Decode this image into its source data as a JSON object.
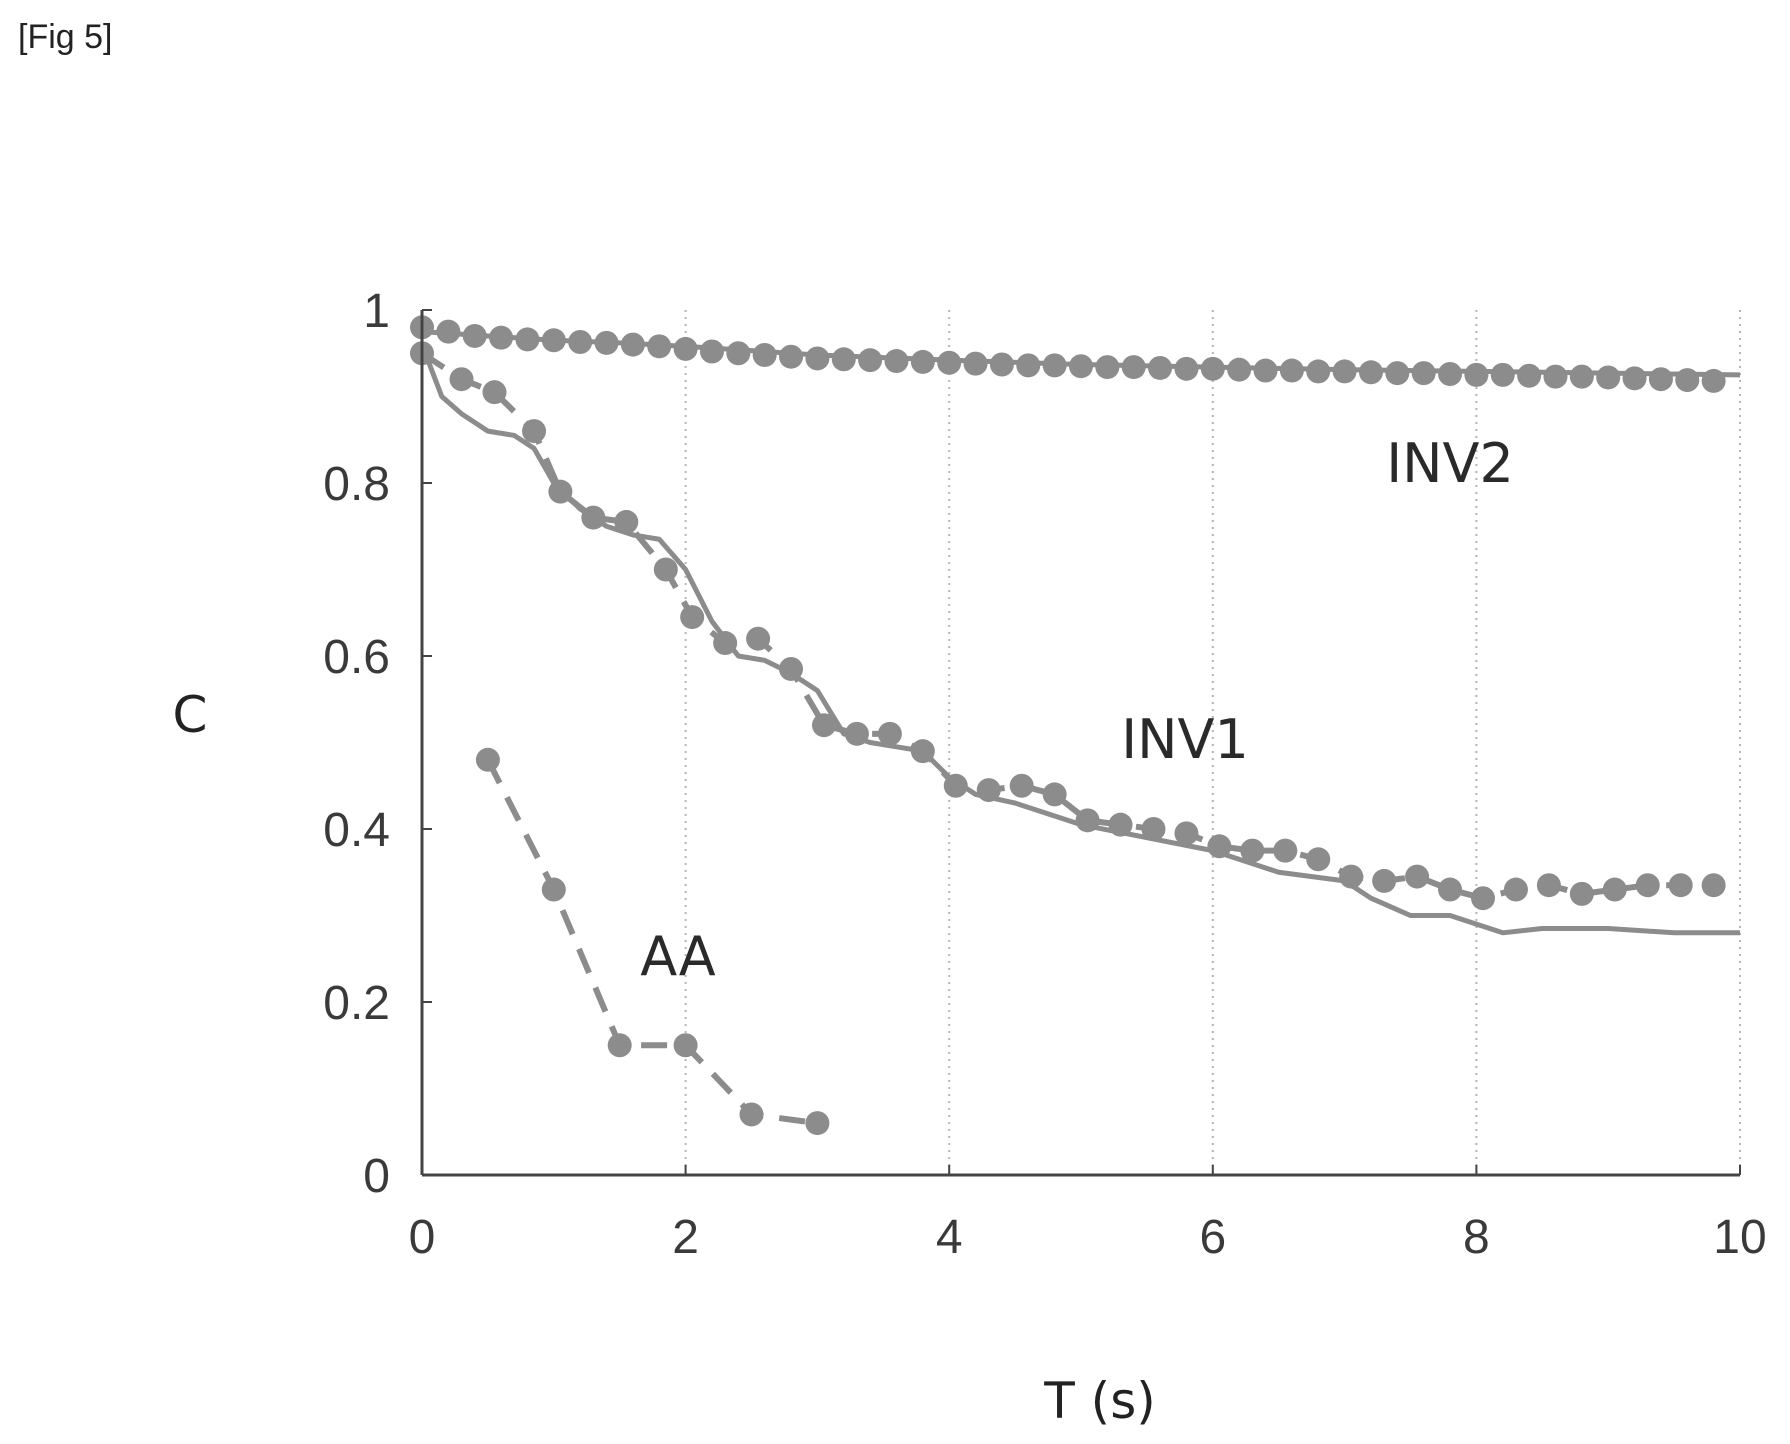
{
  "figure_label": "[Fig 5]",
  "chart_data": {
    "type": "line",
    "xlabel": "T (s)",
    "ylabel": "C",
    "xlim": [
      0,
      10
    ],
    "ylim": [
      0,
      1
    ],
    "x_ticks": [
      "0",
      "2",
      "4",
      "6",
      "8",
      "10"
    ],
    "y_ticks": [
      "0",
      "0.2",
      "0.4",
      "0.6",
      "0.8",
      "1"
    ],
    "grid": "vertical dotted",
    "colors": {
      "series": "#8c8c8c",
      "axis": "#444444",
      "grid": "#b5b5b5"
    },
    "series": [
      {
        "name": "INV2",
        "kind": "solid",
        "x": [
          0,
          0.5,
          1,
          1.5,
          2,
          2.5,
          3,
          4,
          5,
          6,
          7,
          8,
          9,
          10
        ],
        "y": [
          0.975,
          0.97,
          0.965,
          0.962,
          0.958,
          0.953,
          0.948,
          0.942,
          0.937,
          0.934,
          0.931,
          0.929,
          0.927,
          0.925
        ]
      },
      {
        "name": "INV2",
        "kind": "dotted",
        "x": [
          0,
          0.2,
          0.4,
          0.6,
          0.8,
          1,
          1.2,
          1.4,
          1.6,
          1.8,
          2,
          2.2,
          2.4,
          2.6,
          2.8,
          3,
          3.2,
          3.4,
          3.6,
          3.8,
          4,
          4.2,
          4.4,
          4.6,
          4.8,
          5,
          5.2,
          5.4,
          5.6,
          5.8,
          6,
          6.2,
          6.4,
          6.6,
          6.8,
          7,
          7.2,
          7.4,
          7.6,
          7.8,
          8,
          8.2,
          8.4,
          8.6,
          8.8,
          9,
          9.2,
          9.4,
          9.6,
          9.8
        ],
        "y": [
          0.98,
          0.975,
          0.97,
          0.968,
          0.966,
          0.965,
          0.963,
          0.962,
          0.96,
          0.958,
          0.955,
          0.952,
          0.95,
          0.948,
          0.946,
          0.944,
          0.943,
          0.942,
          0.941,
          0.94,
          0.939,
          0.938,
          0.937,
          0.936,
          0.936,
          0.935,
          0.934,
          0.934,
          0.933,
          0.932,
          0.932,
          0.931,
          0.93,
          0.93,
          0.929,
          0.929,
          0.928,
          0.927,
          0.927,
          0.926,
          0.925,
          0.925,
          0.924,
          0.923,
          0.923,
          0.922,
          0.921,
          0.92,
          0.919,
          0.918
        ]
      },
      {
        "name": "INV1",
        "kind": "solid",
        "x": [
          0,
          0.15,
          0.3,
          0.5,
          0.7,
          0.85,
          1.0,
          1.2,
          1.4,
          1.6,
          1.8,
          2.0,
          2.2,
          2.4,
          2.6,
          2.8,
          3.0,
          3.2,
          3.4,
          3.6,
          3.8,
          4.0,
          4.2,
          4.5,
          5.0,
          5.5,
          6.0,
          6.5,
          7.0,
          7.2,
          7.5,
          7.8,
          8.0,
          8.2,
          8.5,
          9.0,
          9.5,
          10.0
        ],
        "y": [
          0.96,
          0.9,
          0.88,
          0.86,
          0.855,
          0.84,
          0.8,
          0.77,
          0.75,
          0.74,
          0.735,
          0.7,
          0.64,
          0.6,
          0.595,
          0.58,
          0.56,
          0.51,
          0.5,
          0.495,
          0.49,
          0.46,
          0.44,
          0.43,
          0.405,
          0.39,
          0.375,
          0.35,
          0.34,
          0.32,
          0.3,
          0.3,
          0.29,
          0.28,
          0.285,
          0.285,
          0.28,
          0.28
        ]
      },
      {
        "name": "INV1",
        "kind": "dashed-with-markers",
        "x": [
          0,
          0.3,
          0.55,
          0.85,
          1.05,
          1.3,
          1.55,
          1.85,
          2.05,
          2.3,
          2.55,
          2.8,
          3.05,
          3.3,
          3.55,
          3.8,
          4.05,
          4.3,
          4.55,
          4.8,
          5.05,
          5.3,
          5.55,
          5.8,
          6.05,
          6.3,
          6.55,
          6.8,
          7.05,
          7.3,
          7.55,
          7.8,
          8.05,
          8.3,
          8.55,
          8.8,
          9.05,
          9.3,
          9.55,
          9.8
        ],
        "y": [
          0.95,
          0.92,
          0.905,
          0.86,
          0.79,
          0.76,
          0.755,
          0.7,
          0.645,
          0.615,
          0.62,
          0.585,
          0.52,
          0.51,
          0.51,
          0.49,
          0.45,
          0.445,
          0.45,
          0.44,
          0.41,
          0.405,
          0.4,
          0.395,
          0.38,
          0.375,
          0.375,
          0.365,
          0.345,
          0.34,
          0.345,
          0.33,
          0.32,
          0.33,
          0.335,
          0.325,
          0.33,
          0.335,
          0.335,
          0.335
        ]
      },
      {
        "name": "AA",
        "kind": "dashed-with-markers",
        "x": [
          0.5,
          1,
          1.5,
          2,
          2.5,
          3
        ],
        "y": [
          0.48,
          0.33,
          0.15,
          0.15,
          0.07,
          0.06
        ]
      }
    ]
  }
}
